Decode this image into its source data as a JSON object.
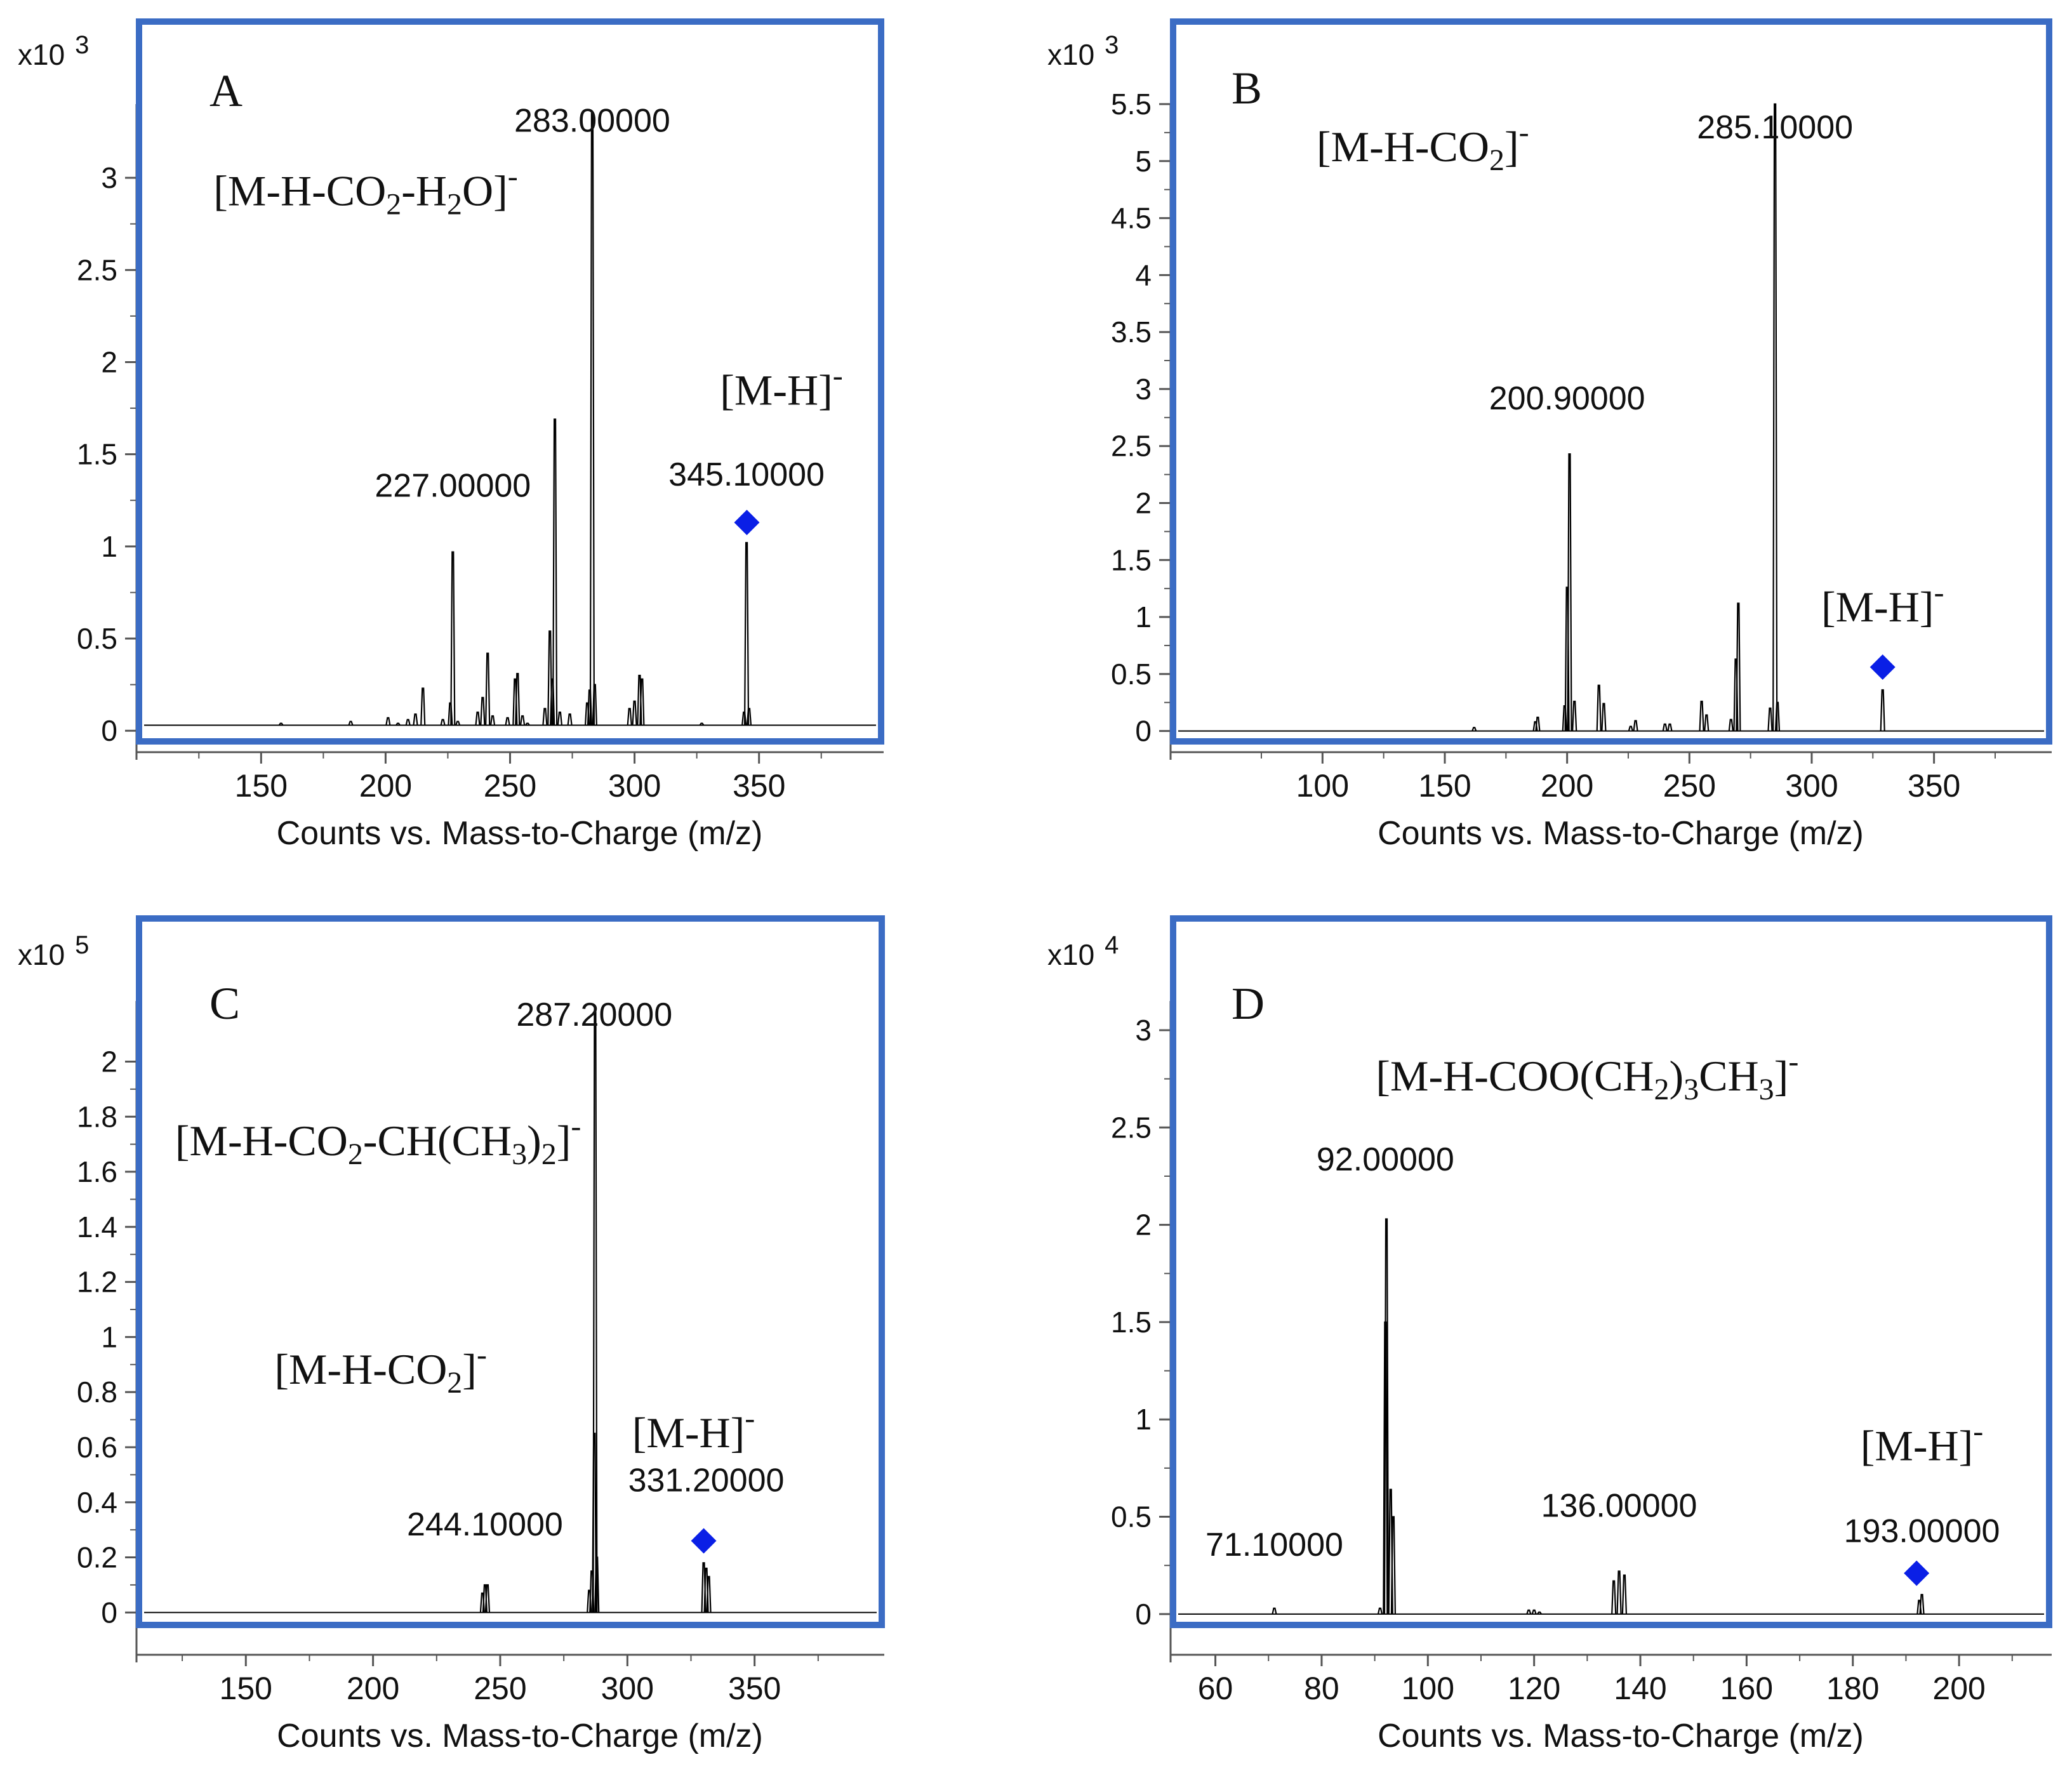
{
  "chart_data": [
    {
      "panel": "A",
      "type": "line",
      "multiplier_label": "x10",
      "multiplier_exp": "3",
      "panel_label": "A",
      "xlabel": "Counts vs. Mass-to-Charge (m/z)",
      "xlim": [
        103,
        397
      ],
      "ylim": [
        -0.02,
        3.4
      ],
      "xticks": [
        150,
        200,
        250,
        300,
        350
      ],
      "yticks": [
        0,
        0.5,
        1,
        1.5,
        2,
        2.5,
        3
      ],
      "ytick_labels": [
        "0",
        "0.5",
        "1",
        "1.5",
        "2",
        "2.5",
        "3"
      ],
      "baseline": 0.03,
      "peaks": [
        {
          "x": 158,
          "y": 0.04
        },
        {
          "x": 186,
          "y": 0.05
        },
        {
          "x": 201,
          "y": 0.07
        },
        {
          "x": 205,
          "y": 0.04
        },
        {
          "x": 209,
          "y": 0.06
        },
        {
          "x": 212,
          "y": 0.09
        },
        {
          "x": 215,
          "y": 0.23
        },
        {
          "x": 223,
          "y": 0.06
        },
        {
          "x": 226,
          "y": 0.15
        },
        {
          "x": 227,
          "y": 0.97
        },
        {
          "x": 229,
          "y": 0.05
        },
        {
          "x": 237,
          "y": 0.1
        },
        {
          "x": 239,
          "y": 0.18
        },
        {
          "x": 241,
          "y": 0.42
        },
        {
          "x": 243,
          "y": 0.08
        },
        {
          "x": 249,
          "y": 0.07
        },
        {
          "x": 252,
          "y": 0.28
        },
        {
          "x": 253,
          "y": 0.31
        },
        {
          "x": 255,
          "y": 0.08
        },
        {
          "x": 257,
          "y": 0.04
        },
        {
          "x": 264,
          "y": 0.12
        },
        {
          "x": 266,
          "y": 0.54
        },
        {
          "x": 267,
          "y": 0.28
        },
        {
          "x": 268,
          "y": 1.69
        },
        {
          "x": 270,
          "y": 0.1
        },
        {
          "x": 274,
          "y": 0.09
        },
        {
          "x": 281,
          "y": 0.15
        },
        {
          "x": 282,
          "y": 0.22
        },
        {
          "x": 283,
          "y": 3.35
        },
        {
          "x": 284,
          "y": 0.25
        },
        {
          "x": 298,
          "y": 0.12
        },
        {
          "x": 300,
          "y": 0.16
        },
        {
          "x": 302,
          "y": 0.3
        },
        {
          "x": 303,
          "y": 0.28
        },
        {
          "x": 327,
          "y": 0.04
        },
        {
          "x": 344,
          "y": 0.1
        },
        {
          "x": 345,
          "y": 1.02
        },
        {
          "x": 346,
          "y": 0.12
        }
      ],
      "labels": [
        {
          "x": 283,
          "y": 3.25,
          "text": "283.00000"
        },
        {
          "x": 227,
          "y": 1.27,
          "text": "227.00000"
        },
        {
          "x": 345,
          "y": 1.33,
          "text": "345.10000"
        }
      ],
      "marker": {
        "x": 345.1,
        "y": 1.13
      },
      "annotations": [
        {
          "x": 192,
          "y": 2.85,
          "size": 54,
          "parts": [
            {
              "t": "[M-H-CO"
            },
            {
              "t": "2",
              "sub": true
            },
            {
              "t": "-H"
            },
            {
              "t": "2",
              "sub": true
            },
            {
              "t": "O]"
            },
            {
              "t": "-",
              "sup": true
            }
          ]
        },
        {
          "x": 359,
          "y": 1.77,
          "size": 54,
          "parts": [
            {
              "t": "[M-H]"
            },
            {
              "t": "-",
              "sup": true
            }
          ]
        }
      ]
    },
    {
      "panel": "B",
      "type": "line",
      "multiplier_label": "x10",
      "multiplier_exp": "3",
      "panel_label": "B",
      "xlabel": "Counts vs. Mass-to-Charge (m/z)",
      "xlim": [
        41,
        395
      ],
      "ylim": [
        -0.03,
        5.5
      ],
      "xticks": [
        100,
        150,
        200,
        250,
        300,
        350
      ],
      "yticks": [
        0,
        0.5,
        1,
        1.5,
        2,
        2.5,
        3,
        3.5,
        4,
        4.5,
        5,
        5.5
      ],
      "ytick_labels": [
        "0",
        "0.5",
        "1",
        "1.5",
        "2",
        "2.5",
        "3",
        "3.5",
        "4",
        "4.5",
        "5",
        "5.5"
      ],
      "baseline": 0.0,
      "peaks": [
        {
          "x": 162,
          "y": 0.03
        },
        {
          "x": 187,
          "y": 0.08
        },
        {
          "x": 188,
          "y": 0.12
        },
        {
          "x": 199,
          "y": 0.22
        },
        {
          "x": 200,
          "y": 1.26
        },
        {
          "x": 201,
          "y": 2.43
        },
        {
          "x": 203,
          "y": 0.26
        },
        {
          "x": 213,
          "y": 0.4
        },
        {
          "x": 215,
          "y": 0.24
        },
        {
          "x": 226,
          "y": 0.04
        },
        {
          "x": 228,
          "y": 0.09
        },
        {
          "x": 240,
          "y": 0.06
        },
        {
          "x": 242,
          "y": 0.06
        },
        {
          "x": 255,
          "y": 0.26
        },
        {
          "x": 257,
          "y": 0.14
        },
        {
          "x": 267,
          "y": 0.1
        },
        {
          "x": 269,
          "y": 0.63
        },
        {
          "x": 270,
          "y": 1.12
        },
        {
          "x": 283,
          "y": 0.2
        },
        {
          "x": 285,
          "y": 5.5
        },
        {
          "x": 286,
          "y": 0.25
        },
        {
          "x": 329,
          "y": 0.36
        }
      ],
      "labels": [
        {
          "x": 285,
          "y": 5.2,
          "text": "285.10000"
        },
        {
          "x": 200,
          "y": 2.82,
          "text": "200.90000"
        }
      ],
      "marker": {
        "x": 329,
        "y": 0.56
      },
      "annotations": [
        {
          "x": 141,
          "y": 5.0,
          "size": 54,
          "parts": [
            {
              "t": "[M-H-CO"
            },
            {
              "t": "2",
              "sub": true
            },
            {
              "t": "]"
            },
            {
              "t": "-",
              "sup": true
            }
          ]
        },
        {
          "x": 329,
          "y": 0.96,
          "size": 54,
          "parts": [
            {
              "t": "[M-H]"
            },
            {
              "t": "-",
              "sup": true
            }
          ]
        }
      ]
    },
    {
      "panel": "C",
      "type": "line",
      "multiplier_label": "x10",
      "multiplier_exp": "5",
      "panel_label": "C",
      "xlabel": "Counts vs. Mass-to-Charge (m/z)",
      "xlim": [
        110,
        398
      ],
      "ylim": [
        -0.02,
        2.22
      ],
      "xticks": [
        150,
        200,
        250,
        300,
        350
      ],
      "yticks": [
        0,
        0.2,
        0.4,
        0.6,
        0.8,
        1,
        1.2,
        1.4,
        1.6,
        1.8,
        2
      ],
      "ytick_labels": [
        "0",
        "0.2",
        "0.4",
        "0.6",
        "0.8",
        "1",
        "1.2",
        "1.4",
        "1.6",
        "1.8",
        "2"
      ],
      "baseline": 0.0,
      "peaks": [
        {
          "x": 243,
          "y": 0.07
        },
        {
          "x": 244,
          "y": 0.1
        },
        {
          "x": 245,
          "y": 0.1
        },
        {
          "x": 285,
          "y": 0.08
        },
        {
          "x": 286,
          "y": 0.15
        },
        {
          "x": 287,
          "y": 0.65
        },
        {
          "x": 287.3,
          "y": 2.18
        },
        {
          "x": 288,
          "y": 0.2
        },
        {
          "x": 330,
          "y": 0.18
        },
        {
          "x": 331,
          "y": 0.16
        },
        {
          "x": 332,
          "y": 0.13
        }
      ],
      "labels": [
        {
          "x": 287,
          "y": 2.13,
          "text": "287.20000"
        },
        {
          "x": 244,
          "y": 0.28,
          "text": "244.10000"
        },
        {
          "x": 331,
          "y": 0.44,
          "text": "331.20000"
        }
      ],
      "marker": {
        "x": 330,
        "y": 0.26
      },
      "annotations": [
        {
          "x": 202,
          "y": 1.66,
          "size": 54,
          "parts": [
            {
              "t": "[M-H-CO"
            },
            {
              "t": "2",
              "sub": true
            },
            {
              "t": "-CH(CH"
            },
            {
              "t": "3",
              "sub": true
            },
            {
              "t": ")"
            },
            {
              "t": "2",
              "sub": true
            },
            {
              "t": "]"
            },
            {
              "t": "-",
              "sup": true
            }
          ]
        },
        {
          "x": 203,
          "y": 0.83,
          "size": 54,
          "parts": [
            {
              "t": "[M-H-CO"
            },
            {
              "t": "2",
              "sub": true
            },
            {
              "t": "]"
            },
            {
              "t": "-",
              "sup": true
            }
          ]
        },
        {
          "x": 326,
          "y": 0.6,
          "size": 54,
          "parts": [
            {
              "t": "[M-H]"
            },
            {
              "t": "-",
              "sup": true
            }
          ]
        }
      ]
    },
    {
      "panel": "D",
      "type": "line",
      "multiplier_label": "x10",
      "multiplier_exp": "4",
      "panel_label": "D",
      "xlabel": "Counts vs. Mass-to-Charge (m/z)",
      "xlim": [
        53,
        216
      ],
      "ylim": [
        -0.02,
        3.15
      ],
      "xticks": [
        60,
        80,
        100,
        120,
        140,
        160,
        180,
        200
      ],
      "yticks": [
        0,
        0.5,
        1,
        1.5,
        2,
        2.5,
        3
      ],
      "ytick_labels": [
        "0",
        "0.5",
        "1",
        "1.5",
        "2",
        "2.5",
        "3"
      ],
      "baseline": 0.0,
      "peaks": [
        {
          "x": 71.1,
          "y": 0.03
        },
        {
          "x": 91,
          "y": 0.03
        },
        {
          "x": 92,
          "y": 1.5
        },
        {
          "x": 92.2,
          "y": 2.03
        },
        {
          "x": 93,
          "y": 0.64
        },
        {
          "x": 93.5,
          "y": 0.5
        },
        {
          "x": 119,
          "y": 0.02
        },
        {
          "x": 120,
          "y": 0.02
        },
        {
          "x": 121,
          "y": 0.01
        },
        {
          "x": 135,
          "y": 0.17
        },
        {
          "x": 136,
          "y": 0.22
        },
        {
          "x": 137,
          "y": 0.2
        },
        {
          "x": 192.5,
          "y": 0.07
        },
        {
          "x": 193,
          "y": 0.1
        }
      ],
      "labels": [
        {
          "x": 92,
          "y": 2.28,
          "text": "92.00000"
        },
        {
          "x": 71.1,
          "y": 0.3,
          "text": "71.10000"
        },
        {
          "x": 136,
          "y": 0.5,
          "text": "136.00000"
        },
        {
          "x": 193,
          "y": 0.37,
          "text": "193.00000"
        }
      ],
      "marker": {
        "x": 192,
        "y": 0.21
      },
      "annotations": [
        {
          "x": 130,
          "y": 2.69,
          "size": 54,
          "parts": [
            {
              "t": "[M-H-COO(CH"
            },
            {
              "t": "2",
              "sub": true
            },
            {
              "t": ")"
            },
            {
              "t": "3",
              "sub": true
            },
            {
              "t": "CH"
            },
            {
              "t": "3",
              "sub": true
            },
            {
              "t": "]"
            },
            {
              "t": "-",
              "sup": true
            }
          ]
        },
        {
          "x": 193,
          "y": 0.79,
          "size": 54,
          "parts": [
            {
              "t": "[M-H]"
            },
            {
              "t": "-",
              "sup": true
            }
          ]
        }
      ]
    }
  ],
  "colors": {
    "frame": "#3b6cc4",
    "trace": "#000000",
    "marker": "#0a1fe6",
    "axis": "#555555",
    "text": "#111111"
  }
}
